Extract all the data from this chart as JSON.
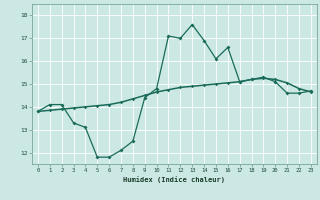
{
  "xlabel": "Humidex (Indice chaleur)",
  "background_color": "#cce8e4",
  "line_color": "#1a6b5a",
  "grid_color": "#ffffff",
  "xlim": [
    -0.5,
    23.5
  ],
  "ylim": [
    11.5,
    18.5
  ],
  "yticks": [
    12,
    13,
    14,
    15,
    16,
    17,
    18
  ],
  "xticks": [
    0,
    1,
    2,
    3,
    4,
    5,
    6,
    7,
    8,
    9,
    10,
    11,
    12,
    13,
    14,
    15,
    16,
    17,
    18,
    19,
    20,
    21,
    22,
    23
  ],
  "series1_x": [
    0,
    1,
    2,
    3,
    4,
    5,
    6,
    7,
    8,
    9,
    10,
    11,
    12,
    13,
    14,
    15,
    16,
    17,
    18,
    19,
    20,
    21,
    22,
    23
  ],
  "series1_y": [
    13.8,
    14.1,
    14.1,
    13.3,
    13.1,
    11.8,
    11.8,
    12.1,
    12.5,
    14.4,
    14.8,
    17.1,
    17.0,
    17.6,
    16.9,
    16.1,
    16.6,
    15.1,
    15.2,
    15.3,
    15.1,
    14.6,
    14.6,
    14.7
  ],
  "series2_x": [
    0,
    1,
    2,
    3,
    4,
    5,
    6,
    7,
    8,
    9,
    10,
    11,
    12,
    13,
    14,
    15,
    16,
    17,
    18,
    19,
    20,
    21,
    22,
    23
  ],
  "series2_y": [
    13.8,
    13.85,
    13.9,
    13.95,
    14.0,
    14.05,
    14.1,
    14.2,
    14.35,
    14.5,
    14.65,
    14.75,
    14.85,
    14.9,
    14.95,
    15.0,
    15.05,
    15.1,
    15.2,
    15.25,
    15.2,
    15.05,
    14.8,
    14.65
  ]
}
